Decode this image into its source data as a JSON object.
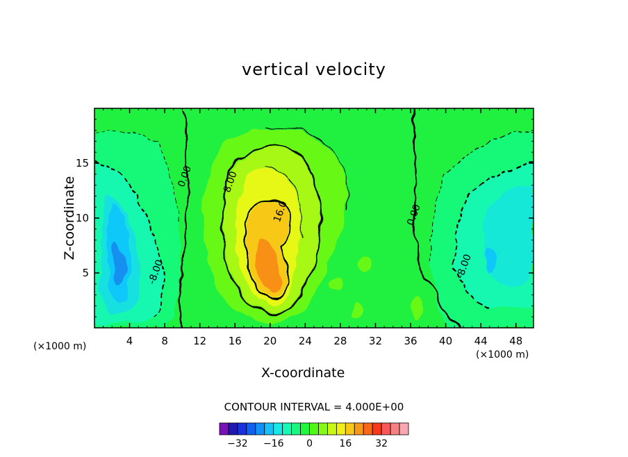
{
  "chart_data": {
    "type": "heatmap",
    "subtype": "filled contour",
    "title": "vertical velocity",
    "xlabel": "X-coordinate",
    "ylabel": "Z-coordinate",
    "x_units_label": "(×1000 m)",
    "xlim": [
      0,
      50
    ],
    "ylim": [
      0,
      20
    ],
    "x_ticks": [
      4,
      8,
      12,
      16,
      20,
      24,
      28,
      32,
      36,
      40,
      44,
      48
    ],
    "y_ticks": [
      5,
      10,
      15
    ],
    "contour_interval_text": "CONTOUR INTERVAL = 4.000E+00",
    "contour_interval": 4.0,
    "contour_labels": [
      {
        "text": "8.00",
        "x": 15.8,
        "z": 13.2
      },
      {
        "text": "16.0",
        "x": 21.5,
        "z": 10.5
      },
      {
        "text": "0.00",
        "x": 10.6,
        "z": 13.7
      },
      {
        "text": "0.00",
        "x": 36.7,
        "z": 10.2
      },
      {
        "text": "-8.00",
        "x": 7.3,
        "z": 5.0
      },
      {
        "text": "-8.00",
        "x": 42.4,
        "z": 5.5
      }
    ],
    "features": [
      {
        "kind": "updraft",
        "x_center": 21,
        "z_center": 8,
        "peak": 26
      },
      {
        "kind": "downdraft",
        "x_center": 3,
        "z_center": 6,
        "peak": -18
      },
      {
        "kind": "downdraft",
        "x_center": 45,
        "z_center": 6,
        "peak": -14
      }
    ],
    "colorbar": {
      "colors": [
        "#7a10b8",
        "#2018b0",
        "#1830e0",
        "#1060f0",
        "#1090f8",
        "#18c0f8",
        "#18e8e8",
        "#18f8b8",
        "#18f880",
        "#20f840",
        "#50f818",
        "#88f818",
        "#c8f818",
        "#f0f018",
        "#f8c818",
        "#f89818",
        "#f86818",
        "#f83818",
        "#f85858",
        "#f88080",
        "#f8a8b0"
      ],
      "tick_labels": [
        "-32",
        "-16",
        "0",
        "16",
        "32"
      ],
      "tick_values": [
        -32,
        -16,
        0,
        16,
        32
      ]
    }
  }
}
